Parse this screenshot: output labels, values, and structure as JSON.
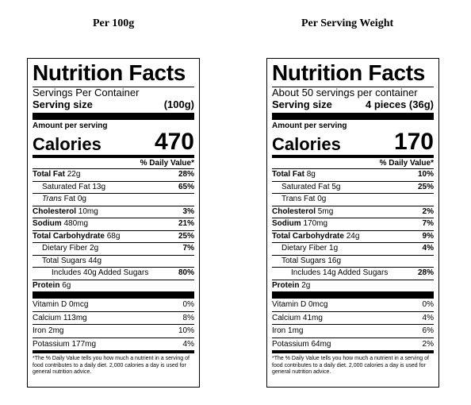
{
  "headings": {
    "left": "Per 100g",
    "right": "Per Serving Weight"
  },
  "labels": [
    {
      "title": "Nutrition Facts",
      "servings": "Servings Per Container",
      "serving_size_label": "Serving size",
      "serving_size_value": "(100g)",
      "amount_per_serving": "Amount per serving",
      "calories_label": "Calories",
      "calories": "470",
      "dv_header": "% Daily Value*",
      "nutrients": [
        {
          "pre": "Total Fat",
          "amt": "22g",
          "dv": "28%"
        },
        {
          "pre": "Saturated Fat",
          "amt": "13g",
          "dv": "65%"
        },
        {
          "pre": "Trans",
          "amt": "Fat 0g",
          "dv": ""
        },
        {
          "pre": "Cholesterol",
          "amt": "10mg",
          "dv": "3%"
        },
        {
          "pre": "Sodium",
          "amt": "480mg",
          "dv": "21%"
        },
        {
          "pre": "Total Carbohydrate",
          "amt": "68g",
          "dv": "25%"
        },
        {
          "pre": "Dietary Fiber",
          "amt": "2g",
          "dv": "7%"
        },
        {
          "pre": "Total Sugars",
          "amt": "44g",
          "dv": ""
        },
        {
          "pre": "Includes 40g Added Sugars",
          "amt": "",
          "dv": "80%"
        },
        {
          "pre": "Protein",
          "amt": "6g",
          "dv": ""
        }
      ],
      "vitamins": [
        {
          "name": "Vitamin D 0mcg",
          "dv": "0%"
        },
        {
          "name": "Calcium 113mg",
          "dv": "8%"
        },
        {
          "name": "Iron 2mg",
          "dv": "10%"
        },
        {
          "name": "Potassium 177mg",
          "dv": "4%"
        }
      ],
      "footnote": "*The % Daily Value tells you how much a nutrient in a serving of food contributes to a daily diet. 2,000 calories a day is used for general nutrition advice."
    },
    {
      "title": "Nutrition Facts",
      "servings": "About 50 servings per container",
      "serving_size_label": "Serving size",
      "serving_size_value": "4 pieces (36g)",
      "amount_per_serving": "Amount per serving",
      "calories_label": "Calories",
      "calories": "170",
      "dv_header": "% Daily Value*",
      "nutrients": [
        {
          "pre": "Total Fat",
          "amt": "8g",
          "dv": "10%"
        },
        {
          "pre": "Saturated Fat",
          "amt": "5g",
          "dv": "25%"
        },
        {
          "pre": "Trans",
          "amt": "Fat 0g",
          "dv": ""
        },
        {
          "pre": "Cholesterol",
          "amt": "5mg",
          "dv": "2%"
        },
        {
          "pre": "Sodium",
          "amt": "170mg",
          "dv": "7%"
        },
        {
          "pre": "Total Carbohydrate",
          "amt": "24g",
          "dv": "9%"
        },
        {
          "pre": "Dietary Fiber",
          "amt": "1g",
          "dv": "4%"
        },
        {
          "pre": "Total Sugars",
          "amt": "16g",
          "dv": ""
        },
        {
          "pre": "Includes 14g Added Sugars",
          "amt": "",
          "dv": "28%"
        },
        {
          "pre": "Protein",
          "amt": "2g",
          "dv": ""
        }
      ],
      "vitamins": [
        {
          "name": "Vitamin D 0mcg",
          "dv": "0%"
        },
        {
          "name": "Calcium 41mg",
          "dv": "4%"
        },
        {
          "name": "Iron 1mg",
          "dv": "6%"
        },
        {
          "name": "Potassium 64mg",
          "dv": "2%"
        }
      ],
      "footnote": "*The % Daily Value tells you how much a nutrient in a serving of food contributes to a daily diet. 2,000 calories a day is used for general nutrition advice."
    }
  ]
}
